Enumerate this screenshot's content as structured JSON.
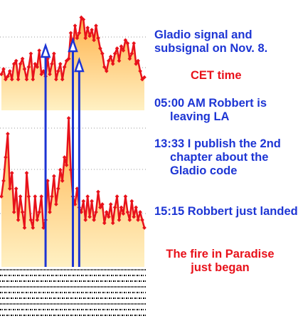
{
  "chart_data": {
    "type": "area",
    "title": "Gladio signal and subsignal on Nov. 8.",
    "timezone_note": "CET time",
    "colors": {
      "line": "#e8121b",
      "fill_top": "#ffb24a",
      "fill_bottom": "#fff1c4",
      "arrow": "#1d35d4",
      "grid": "#9a9a9a"
    },
    "grid": true,
    "series": [
      {
        "values": [
          0.35,
          0.4,
          0.3,
          0.33,
          0.38,
          0.3,
          0.45,
          0.48,
          0.3,
          0.45,
          0.5,
          0.4,
          0.3,
          0.42,
          0.55,
          0.3,
          0.45,
          0.42,
          0.58,
          0.35,
          0.38,
          0.33,
          0.5,
          0.35,
          0.45,
          0.55,
          0.3,
          0.38,
          0.45,
          0.3,
          0.42,
          0.48,
          0.5,
          0.75,
          0.6,
          0.82,
          0.7,
          0.75,
          0.9,
          0.88,
          0.7,
          0.8,
          0.72,
          0.78,
          0.68,
          0.82,
          0.7,
          0.6,
          0.55,
          0.42,
          0.38,
          0.48,
          0.52,
          0.45,
          0.55,
          0.6,
          0.48,
          0.62,
          0.58,
          0.68,
          0.65,
          0.5,
          0.55,
          0.65,
          0.45,
          0.48,
          0.38,
          0.3,
          0.32
        ]
      },
      {
        "values": [
          0.45,
          0.55,
          0.7,
          0.85,
          0.5,
          0.6,
          0.35,
          0.5,
          0.3,
          0.45,
          0.35,
          0.25,
          0.6,
          0.45,
          0.3,
          0.25,
          0.45,
          0.3,
          0.35,
          0.45,
          0.25,
          0.3,
          0.55,
          0.35,
          0.45,
          0.58,
          0.4,
          0.5,
          0.62,
          0.55,
          0.7,
          0.65,
          0.95,
          0.62,
          0.45,
          0.4,
          0.5,
          0.38,
          0.35,
          0.42,
          0.3,
          0.45,
          0.32,
          0.42,
          0.3,
          0.35,
          0.48,
          0.38,
          0.4,
          0.28,
          0.35,
          0.32,
          0.4,
          0.28,
          0.38,
          0.45,
          0.3,
          0.38,
          0.34,
          0.45,
          0.35,
          0.3,
          0.42,
          0.32,
          0.38,
          0.3,
          0.35,
          0.3,
          0.25
        ]
      }
    ],
    "arrows_at_index": [
      21,
      34,
      37
    ],
    "annotations": [
      "Gladio signal and subsignal on Nov. 8.",
      "CET time",
      "05:00 AM Robbert is leaving LA",
      "13:33 I publish the 2nd chapter about the Gladio code",
      "15:15 Robbert just landed",
      "The fire in Paradise just began"
    ]
  }
}
